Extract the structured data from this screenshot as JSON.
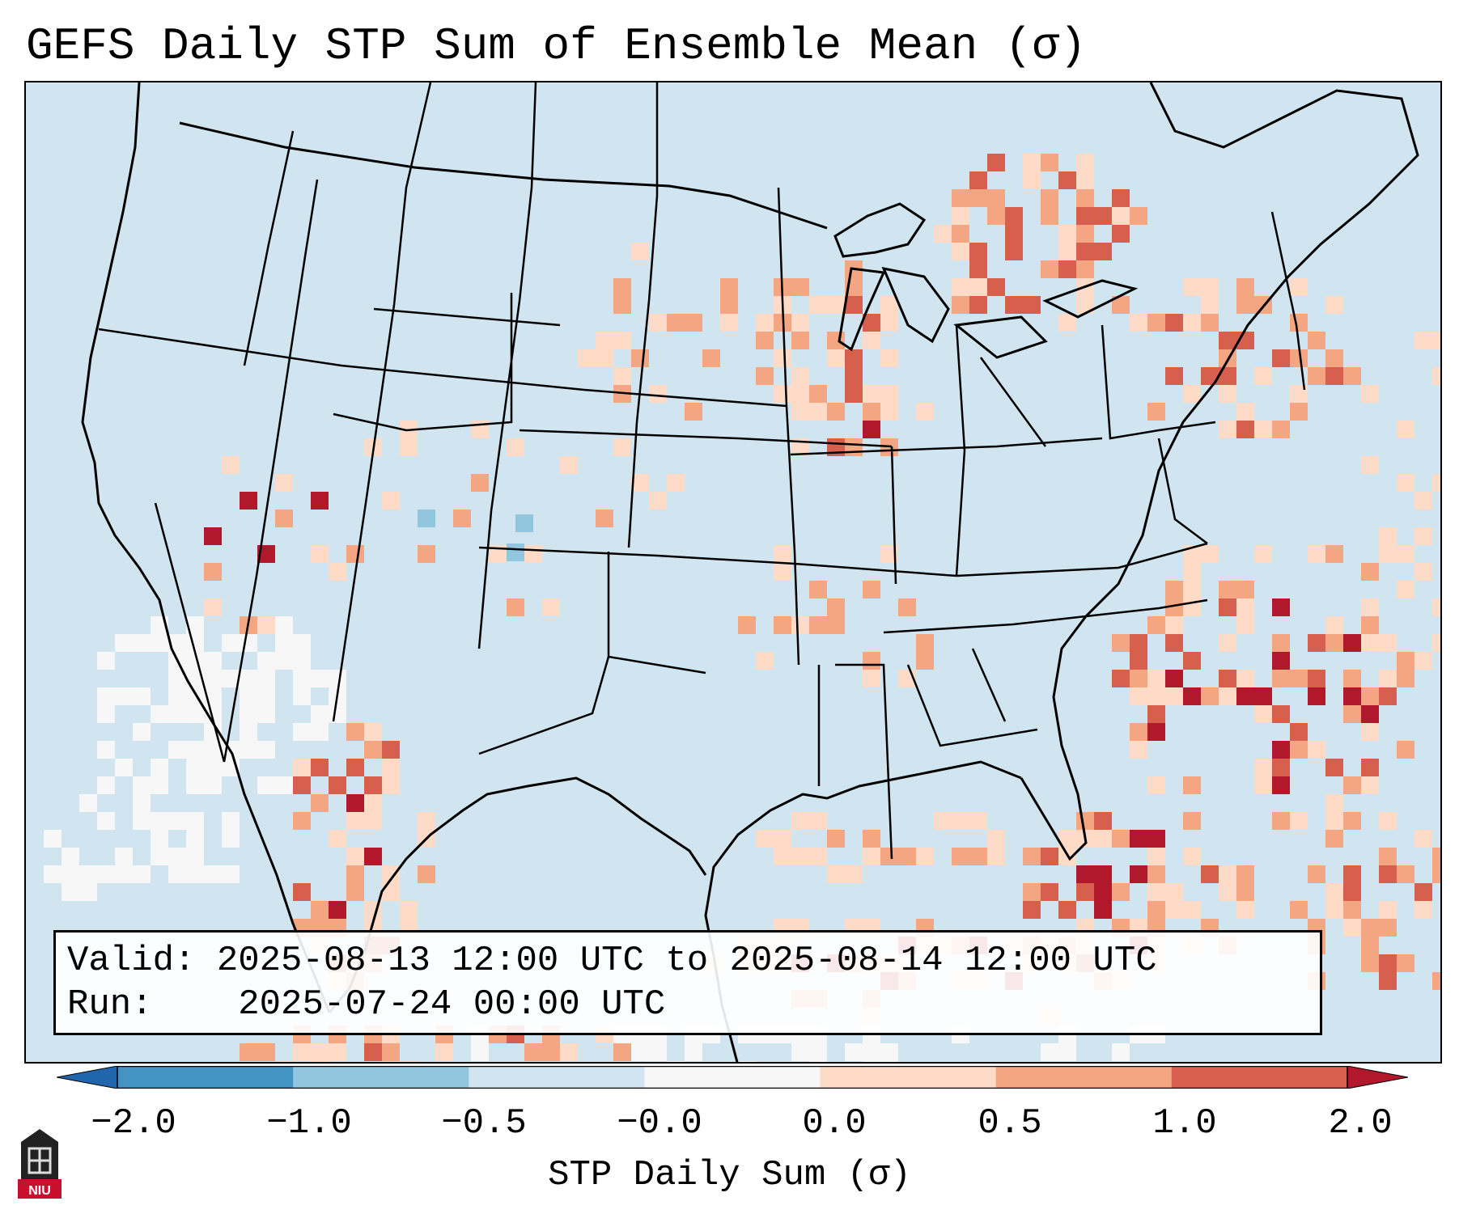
{
  "title": "GEFS Daily STP Sum of Ensemble Mean (σ)",
  "info": {
    "valid_label": "Valid:",
    "valid_text": "2025-08-13 12:00 UTC to 2025-08-14 12:00 UTC",
    "run_label": "Run:",
    "run_text": "2025-07-24 00:00 UTC"
  },
  "colorbar": {
    "label": "STP Daily Sum (σ)",
    "tick_labels": [
      "−2.0",
      "−1.0",
      "−0.5",
      "−0.0",
      "0.0",
      "0.5",
      "1.0",
      "2.0"
    ],
    "colors": [
      "#2166ac",
      "#4393c3",
      "#92c5de",
      "#d1e5f0",
      "#f7f7f7",
      "#fddbc7",
      "#f4a582",
      "#d6604d",
      "#b2182b"
    ]
  },
  "logo": {
    "text": "NIU",
    "icon": "university-building-icon"
  }
}
